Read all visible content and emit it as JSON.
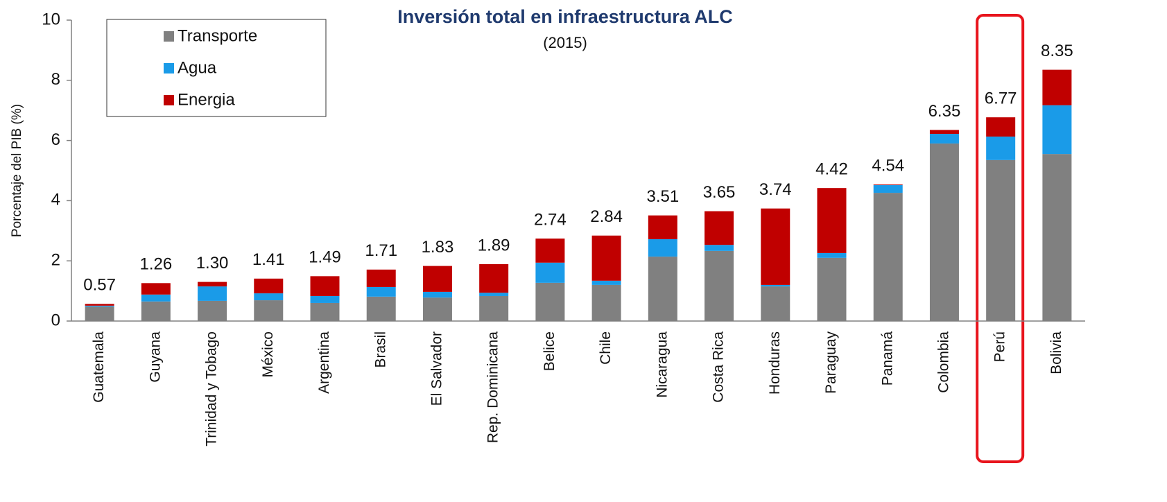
{
  "chart_data": {
    "type": "bar",
    "stacked": true,
    "title": "Inversión total en infraestructura ALC",
    "subtitle": "(2015)",
    "y_label": "Porcentaje del PIB (%)",
    "categories": [
      "Guatemala",
      "Guyana",
      "Trinidad y Tobago",
      "México",
      "Argentina",
      "Brasil",
      "El Salvador",
      "Rep. Dominicana",
      "Belice",
      "Chile",
      "Nicaragua",
      "Costa Rica",
      "Honduras",
      "Paraguay",
      "Panamá",
      "Colombia",
      "Perú",
      "Bolivia"
    ],
    "series": [
      {
        "name": "Transporte",
        "color": "#808080",
        "values": [
          0.48,
          0.65,
          0.67,
          0.69,
          0.6,
          0.81,
          0.78,
          0.83,
          1.27,
          1.2,
          2.14,
          2.33,
          1.15,
          2.1,
          4.26,
          5.9,
          5.35,
          5.55
        ]
      },
      {
        "name": "Agua",
        "color": "#1a9be8",
        "values": [
          0.03,
          0.23,
          0.48,
          0.23,
          0.23,
          0.32,
          0.19,
          0.11,
          0.67,
          0.14,
          0.58,
          0.2,
          0.05,
          0.16,
          0.26,
          0.32,
          0.78,
          1.62
        ]
      },
      {
        "name": "Energia",
        "color": "#c00000",
        "values": [
          0.06,
          0.38,
          0.15,
          0.49,
          0.66,
          0.58,
          0.86,
          0.95,
          0.8,
          1.5,
          0.79,
          1.12,
          2.54,
          2.16,
          0.02,
          0.13,
          0.64,
          1.18
        ]
      }
    ],
    "value_labels": [
      "0.57",
      "1.26",
      "1.30",
      "1.41",
      "1.49",
      "1.71",
      "1.83",
      "1.89",
      "2.74",
      "2.84",
      "3.51",
      "3.65",
      "3.74",
      "4.42",
      "4.54",
      "6.35",
      "6.77",
      "8.35"
    ],
    "ylim": [
      0,
      10
    ],
    "yticks": [
      0,
      2,
      4,
      6,
      8,
      10
    ],
    "grid": false,
    "legend": "upper left",
    "highlight": 16
  }
}
